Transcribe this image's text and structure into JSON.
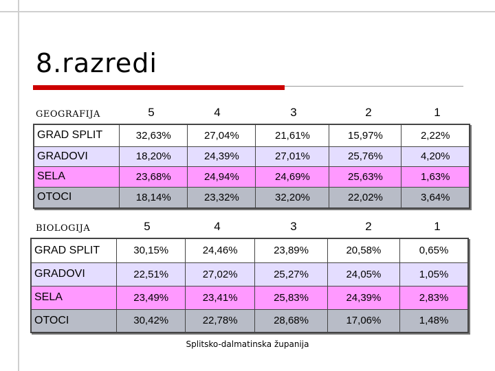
{
  "title": "8.razredi",
  "footer": "Splitsko-dalmatinska županija",
  "grades": [
    "5",
    "4",
    "3",
    "2",
    "1"
  ],
  "sections": [
    {
      "subject": "GEOGRAFIJA",
      "rows": [
        {
          "name": "GRAD SPLIT",
          "values": [
            "32,63%",
            "27,04%",
            "21,61%",
            "15,97%",
            "2,22%"
          ]
        },
        {
          "name": "GRADOVI",
          "values": [
            "18,20%",
            "24,39%",
            "27,01%",
            "25,76%",
            "4,20%"
          ]
        },
        {
          "name": "SELA",
          "values": [
            "23,68%",
            "24,94%",
            "24,69%",
            "25,63%",
            "1,63%"
          ]
        },
        {
          "name": "OTOCI",
          "values": [
            "18,14%",
            "23,32%",
            "32,20%",
            "22,02%",
            "3,64%"
          ]
        }
      ]
    },
    {
      "subject": "BIOLOGIJA",
      "rows": [
        {
          "name": "GRAD SPLIT",
          "values": [
            "30,15%",
            "24,46%",
            "23,89%",
            "20,58%",
            "0,65%"
          ]
        },
        {
          "name": "GRADOVI",
          "values": [
            "22,51%",
            "27,02%",
            "25,27%",
            "24,05%",
            "1,05%"
          ]
        },
        {
          "name": "SELA",
          "values": [
            "23,49%",
            "23,41%",
            "25,83%",
            "24,39%",
            "2,83%"
          ]
        },
        {
          "name": "OTOCI",
          "values": [
            "30,42%",
            "22,78%",
            "28,68%",
            "17,06%",
            "1,48%"
          ]
        }
      ]
    }
  ],
  "colors": {
    "accent_bar": "#cc0000",
    "row_grad_split": "#ffffff",
    "row_gradovi": "#e4ddff",
    "row_sela": "#ff99ff",
    "row_otoci": "#b8bcc7"
  }
}
